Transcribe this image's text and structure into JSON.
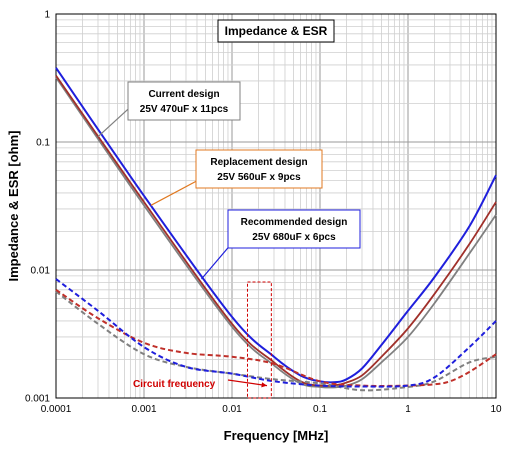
{
  "chart_data": {
    "type": "line",
    "title": "Impedance & ESR",
    "xlabel": "Frequency [MHz]",
    "ylabel": "Impedance & ESR [ohm]",
    "x_scale": "log",
    "y_scale": "log",
    "xlim": [
      0.0001,
      10
    ],
    "ylim": [
      0.001,
      1
    ],
    "grid": true,
    "x_ticks": [
      "0.0001",
      "0.001",
      "0.01",
      "0.1",
      "1",
      "10"
    ],
    "y_ticks": [
      "1",
      "0.1",
      "0.01",
      "0.001"
    ],
    "series": [
      {
        "kind": "impedance",
        "color": "#808080",
        "style": "solid",
        "x": [
          0.0001,
          0.001,
          0.01,
          0.03,
          0.06,
          0.1,
          0.15,
          0.2,
          0.3,
          0.5,
          1,
          2,
          5,
          10
        ],
        "y": [
          0.32,
          0.032,
          0.0036,
          0.0018,
          0.0013,
          0.00122,
          0.00121,
          0.00125,
          0.0014,
          0.0019,
          0.003,
          0.0055,
          0.0135,
          0.027
        ]
      },
      {
        "kind": "impedance",
        "color": "#a0302a",
        "style": "solid",
        "x": [
          0.0001,
          0.001,
          0.01,
          0.03,
          0.06,
          0.1,
          0.15,
          0.2,
          0.3,
          0.5,
          1,
          2,
          5,
          10
        ],
        "y": [
          0.33,
          0.034,
          0.0038,
          0.0019,
          0.00135,
          0.00125,
          0.00126,
          0.00132,
          0.0015,
          0.0021,
          0.0035,
          0.0065,
          0.016,
          0.034
        ]
      },
      {
        "kind": "impedance",
        "color": "#1f1fdc",
        "style": "solid",
        "x": [
          0.0001,
          0.001,
          0.01,
          0.03,
          0.06,
          0.1,
          0.15,
          0.2,
          0.3,
          0.5,
          1,
          2,
          5,
          10
        ],
        "y": [
          0.38,
          0.038,
          0.0043,
          0.0021,
          0.0015,
          0.00135,
          0.00133,
          0.0014,
          0.0017,
          0.0026,
          0.0048,
          0.0088,
          0.022,
          0.055
        ]
      },
      {
        "kind": "esr",
        "color": "#808080",
        "style": "dashed",
        "x": [
          0.0001,
          0.0003,
          0.001,
          0.003,
          0.01,
          0.03,
          0.1,
          0.3,
          1,
          2,
          5,
          10
        ],
        "y": [
          0.0068,
          0.0038,
          0.0022,
          0.00175,
          0.00155,
          0.0014,
          0.0013,
          0.00115,
          0.00122,
          0.00135,
          0.0019,
          0.0021
        ]
      },
      {
        "kind": "esr",
        "color": "#c0302a",
        "style": "dashed",
        "x": [
          0.0001,
          0.0003,
          0.001,
          0.003,
          0.01,
          0.03,
          0.1,
          0.3,
          1,
          2,
          3,
          5,
          10
        ],
        "y": [
          0.007,
          0.0042,
          0.0027,
          0.00225,
          0.0021,
          0.00185,
          0.00135,
          0.00125,
          0.00125,
          0.00128,
          0.00135,
          0.0016,
          0.0022
        ]
      },
      {
        "kind": "esr",
        "color": "#1f1fdc",
        "style": "dashed",
        "x": [
          0.0001,
          0.0003,
          0.001,
          0.003,
          0.01,
          0.03,
          0.1,
          0.3,
          1,
          2,
          5,
          10
        ],
        "y": [
          0.0085,
          0.0048,
          0.0025,
          0.00175,
          0.00155,
          0.00135,
          0.00125,
          0.00123,
          0.00125,
          0.00145,
          0.0025,
          0.004
        ]
      }
    ],
    "annotations": [
      {
        "lines": [
          "Current design",
          "25V 470uF x 11pcs"
        ],
        "border": "#808080",
        "arrow_to": [
          0.0003,
          0.11
        ]
      },
      {
        "lines": [
          "Replacement design",
          "25V 560uF x 9pcs"
        ],
        "border": "#e07820",
        "arrow_to": [
          0.0012,
          0.032
        ]
      },
      {
        "lines": [
          "Recommended design",
          "25V 680uF x 6pcs"
        ],
        "border": "#1f1fdc",
        "arrow_to": [
          0.0045,
          0.0085
        ]
      }
    ],
    "circuit_frequency": {
      "label": "Circuit frequency",
      "color": "#d00000",
      "band": [
        0.015,
        0.028
      ],
      "arrow_to": [
        0.025,
        0.00125
      ]
    }
  }
}
